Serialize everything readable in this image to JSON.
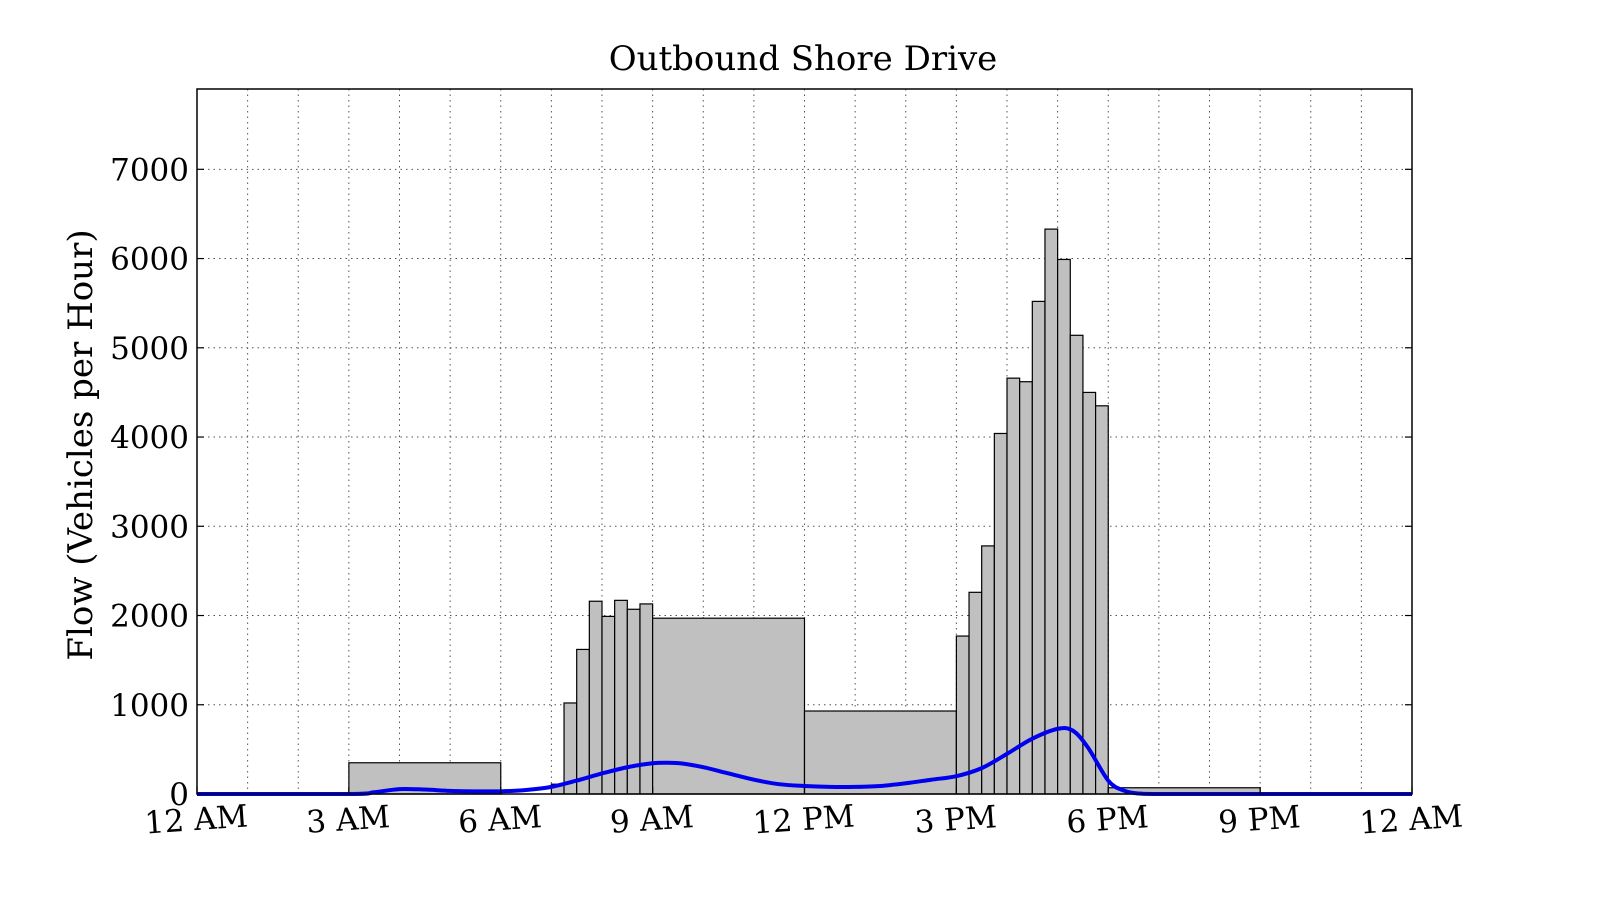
{
  "chart_data": {
    "type": "bar",
    "title": "Outbound Shore Drive",
    "xlabel": "",
    "ylabel": "Flow (Vehicles per Hour)",
    "xlim": [
      0,
      24
    ],
    "ylim": [
      0,
      7900
    ],
    "y_ticks": [
      0,
      1000,
      2000,
      3000,
      4000,
      5000,
      6000,
      7000
    ],
    "x_ticks": [
      0,
      3,
      6,
      9,
      12,
      15,
      18,
      21,
      24
    ],
    "x_tick_labels": [
      "12 AM",
      "3 AM",
      "6 AM",
      "9 AM",
      "12 PM",
      "3 PM",
      "6 PM",
      "9 PM",
      "12 AM"
    ],
    "grid": true,
    "bar_color": "#c0c0c0",
    "line_color": "#0000ee",
    "bins": [
      {
        "start": 0,
        "end": 3,
        "value": 0
      },
      {
        "start": 3,
        "end": 6,
        "value": 350
      },
      {
        "start": 6,
        "end": 7,
        "value": 0
      },
      {
        "start": 7,
        "end": 7.25,
        "value": 110
      },
      {
        "start": 7.25,
        "end": 7.5,
        "value": 1020
      },
      {
        "start": 7.5,
        "end": 7.75,
        "value": 1620
      },
      {
        "start": 7.75,
        "end": 8,
        "value": 2160
      },
      {
        "start": 8,
        "end": 8.25,
        "value": 1990
      },
      {
        "start": 8.25,
        "end": 8.5,
        "value": 2170
      },
      {
        "start": 8.5,
        "end": 8.75,
        "value": 2070
      },
      {
        "start": 8.75,
        "end": 9,
        "value": 2130
      },
      {
        "start": 9,
        "end": 12,
        "value": 1970
      },
      {
        "start": 12,
        "end": 15,
        "value": 930
      },
      {
        "start": 15,
        "end": 15.25,
        "value": 1770
      },
      {
        "start": 15.25,
        "end": 15.5,
        "value": 2260
      },
      {
        "start": 15.5,
        "end": 15.75,
        "value": 2780
      },
      {
        "start": 15.75,
        "end": 16,
        "value": 4040
      },
      {
        "start": 16,
        "end": 16.25,
        "value": 4660
      },
      {
        "start": 16.25,
        "end": 16.5,
        "value": 4620
      },
      {
        "start": 16.5,
        "end": 16.75,
        "value": 5520
      },
      {
        "start": 16.75,
        "end": 17,
        "value": 6330
      },
      {
        "start": 17,
        "end": 17.25,
        "value": 5990
      },
      {
        "start": 17.25,
        "end": 17.5,
        "value": 5140
      },
      {
        "start": 17.5,
        "end": 17.75,
        "value": 4500
      },
      {
        "start": 17.75,
        "end": 18,
        "value": 4350
      },
      {
        "start": 18,
        "end": 21,
        "value": 70
      },
      {
        "start": 21,
        "end": 24,
        "value": 0
      }
    ],
    "series": [
      {
        "type": "line",
        "x": [
          0,
          3,
          3.5,
          4,
          4.5,
          5,
          5.5,
          6,
          6.5,
          7,
          7.5,
          8,
          8.5,
          9,
          9.3,
          9.6,
          10,
          10.5,
          11,
          11.5,
          12,
          12.5,
          13,
          13.5,
          14,
          14.5,
          15,
          15.5,
          16,
          16.5,
          17,
          17.3,
          17.6,
          18,
          18.3,
          18.6,
          19,
          20,
          21,
          22,
          23,
          24
        ],
        "y": [
          0,
          0,
          20,
          55,
          50,
          35,
          30,
          30,
          45,
          80,
          150,
          230,
          300,
          345,
          350,
          340,
          300,
          230,
          160,
          110,
          90,
          80,
          80,
          90,
          120,
          160,
          200,
          290,
          450,
          620,
          730,
          710,
          520,
          150,
          40,
          5,
          0,
          0,
          0,
          0,
          0,
          0
        ]
      }
    ]
  }
}
